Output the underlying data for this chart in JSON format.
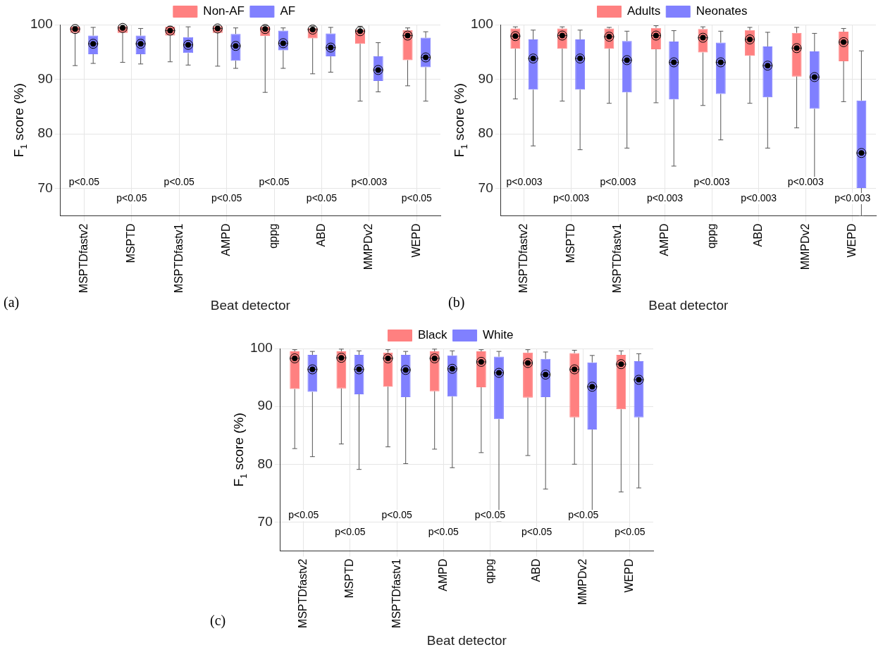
{
  "chart_data": [
    {
      "type": "box",
      "xlabel": "Beat detector",
      "ylabel": "F$_{1}$ score (%)",
      "categories": [
        "MSPTDfastv2",
        "MSPTD",
        "MSPTDfastv1",
        "AMPD",
        "qppg",
        "ABD",
        "MMPDv2",
        "WEPD"
      ],
      "ylim": [
        65,
        100
      ],
      "yticks": [
        70,
        80,
        90,
        100
      ],
      "grid": true,
      "legend": "top",
      "series": [
        {
          "name": "Non-AF",
          "color": "#ff8080",
          "boxes": [
            {
              "low": 92.5,
              "q1": 98.5,
              "median": 99.2,
              "q3": 99.6,
              "high": 99.7,
              "mean": 99.2
            },
            {
              "low": 93.1,
              "q1": 98.5,
              "median": 99.4,
              "q3": 99.7,
              "high": 99.9,
              "mean": 99.4
            },
            {
              "low": 93.2,
              "q1": 98.0,
              "median": 98.9,
              "q3": 99.6,
              "high": 99.7,
              "mean": 98.9
            },
            {
              "low": 92.4,
              "q1": 98.5,
              "median": 99.3,
              "q3": 99.7,
              "high": 99.8,
              "mean": 99.3
            },
            {
              "low": 87.6,
              "q1": 97.9,
              "median": 99.2,
              "q3": 99.6,
              "high": 99.8,
              "mean": 99.2
            },
            {
              "low": 91.0,
              "q1": 97.5,
              "median": 99.1,
              "q3": 99.4,
              "high": 99.7,
              "mean": 99.1
            },
            {
              "low": 86.0,
              "q1": 96.5,
              "median": 98.8,
              "q3": 99.1,
              "high": 99.7,
              "mean": 98.8
            },
            {
              "low": 88.8,
              "q1": 93.5,
              "median": 98.0,
              "q3": 99.0,
              "high": 99.4,
              "mean": 98.0
            }
          ]
        },
        {
          "name": "AF",
          "color": "#8080ff",
          "boxes": [
            {
              "low": 92.9,
              "q1": 94.6,
              "median": 96.5,
              "q3": 98.0,
              "high": 99.5,
              "mean": 96.5
            },
            {
              "low": 92.8,
              "q1": 94.6,
              "median": 96.5,
              "q3": 98.0,
              "high": 99.3,
              "mean": 96.5
            },
            {
              "low": 92.6,
              "q1": 94.8,
              "median": 96.3,
              "q3": 97.7,
              "high": 99.6,
              "mean": 96.3
            },
            {
              "low": 92.0,
              "q1": 93.4,
              "median": 96.1,
              "q3": 98.3,
              "high": 99.4,
              "mean": 96.1
            },
            {
              "low": 92.0,
              "q1": 95.3,
              "median": 96.6,
              "q3": 98.9,
              "high": 99.4,
              "mean": 96.6
            },
            {
              "low": 91.3,
              "q1": 94.2,
              "median": 95.8,
              "q3": 98.4,
              "high": 99.5,
              "mean": 95.8
            },
            {
              "low": 87.7,
              "q1": 89.7,
              "median": 91.7,
              "q3": 94.2,
              "high": 96.7,
              "mean": 91.7
            },
            {
              "low": 86.0,
              "q1": 92.2,
              "median": 94.0,
              "q3": 97.6,
              "high": 98.7,
              "mean": 94.0
            }
          ]
        }
      ],
      "annotations": [
        "(a)",
        "p<0.05",
        "p<0.05",
        "p<0.05",
        "p<0.05",
        "p<0.05",
        "p<0.05",
        "p<0.003",
        "p<0.05"
      ]
    },
    {
      "type": "box",
      "xlabel": "Beat detector",
      "ylabel": "F$_{1}$ score (%)",
      "categories": [
        "MSPTDfastv2",
        "MSPTD",
        "MSPTDfastv1",
        "AMPD",
        "qppg",
        "ABD",
        "MMPDv2",
        "WEPD"
      ],
      "ylim": [
        65,
        100
      ],
      "yticks": [
        70,
        80,
        90,
        100
      ],
      "grid": true,
      "legend": "top",
      "series": [
        {
          "name": "Adults",
          "color": "#ff8080",
          "boxes": [
            {
              "low": 86.4,
              "q1": 95.6,
              "median": 97.9,
              "q3": 99.3,
              "high": 99.6,
              "mean": 97.9
            },
            {
              "low": 86.0,
              "q1": 95.6,
              "median": 98.0,
              "q3": 99.3,
              "high": 99.6,
              "mean": 98.0
            },
            {
              "low": 85.6,
              "q1": 95.6,
              "median": 97.8,
              "q3": 99.3,
              "high": 99.5,
              "mean": 97.8
            },
            {
              "low": 85.7,
              "q1": 95.5,
              "median": 98.0,
              "q3": 99.4,
              "high": 99.8,
              "mean": 98.0
            },
            {
              "low": 85.2,
              "q1": 94.9,
              "median": 97.6,
              "q3": 99.2,
              "high": 99.6,
              "mean": 97.6
            },
            {
              "low": 85.6,
              "q1": 94.3,
              "median": 97.3,
              "q3": 99.0,
              "high": 99.5,
              "mean": 97.3
            },
            {
              "low": 81.1,
              "q1": 90.5,
              "median": 95.7,
              "q3": 98.5,
              "high": 99.5,
              "mean": 95.7
            },
            {
              "low": 85.9,
              "q1": 93.3,
              "median": 96.8,
              "q3": 98.7,
              "high": 99.3,
              "mean": 96.8
            }
          ]
        },
        {
          "name": "Neonates",
          "color": "#8080ff",
          "boxes": [
            {
              "low": 77.8,
              "q1": 88.1,
              "median": 93.8,
              "q3": 97.3,
              "high": 99.0,
              "mean": 93.8
            },
            {
              "low": 77.1,
              "q1": 88.1,
              "median": 93.8,
              "q3": 97.3,
              "high": 99.0,
              "mean": 93.8
            },
            {
              "low": 77.4,
              "q1": 87.6,
              "median": 93.5,
              "q3": 97.0,
              "high": 98.8,
              "mean": 93.5
            },
            {
              "low": 74.1,
              "q1": 86.3,
              "median": 93.1,
              "q3": 96.9,
              "high": 98.9,
              "mean": 93.1
            },
            {
              "low": 78.9,
              "q1": 87.3,
              "median": 93.1,
              "q3": 96.7,
              "high": 98.8,
              "mean": 93.1
            },
            {
              "low": 77.4,
              "q1": 86.7,
              "median": 92.5,
              "q3": 96.0,
              "high": 98.6,
              "mean": 92.5
            },
            {
              "low": 70.2,
              "q1": 84.6,
              "median": 90.4,
              "q3": 95.1,
              "high": 98.4,
              "mean": 90.4
            },
            {
              "low": 65,
              "q1": 70.1,
              "median": 76.5,
              "q3": 86.1,
              "high": 95.2,
              "mean": 76.5
            }
          ]
        }
      ],
      "annotations": [
        "(b)",
        "p<0.003",
        "p<0.003",
        "p<0.003",
        "p<0.003",
        "p<0.003",
        "p<0.003",
        "p<0.003",
        "p<0.003"
      ]
    },
    {
      "type": "box",
      "xlabel": "Beat detector",
      "ylabel": "F$_{1}$ score (%)",
      "categories": [
        "MSPTDfastv2",
        "MSPTD",
        "MSPTDfastv1",
        "AMPD",
        "qppg",
        "ABD",
        "MMPDv2",
        "WEPD"
      ],
      "ylim": [
        65,
        100
      ],
      "yticks": [
        70,
        80,
        90,
        100
      ],
      "grid": true,
      "legend": "top",
      "series": [
        {
          "name": "Black",
          "color": "#ff8080",
          "boxes": [
            {
              "low": 82.7,
              "q1": 93.0,
              "median": 98.3,
              "q3": 99.5,
              "high": 99.8,
              "mean": 98.3
            },
            {
              "low": 83.5,
              "q1": 93.1,
              "median": 98.4,
              "q3": 99.5,
              "high": 99.9,
              "mean": 98.4
            },
            {
              "low": 83.0,
              "q1": 93.4,
              "median": 98.3,
              "q3": 99.3,
              "high": 99.8,
              "mean": 98.3
            },
            {
              "low": 82.6,
              "q1": 92.6,
              "median": 98.3,
              "q3": 99.5,
              "high": 99.9,
              "mean": 98.3
            },
            {
              "low": 82.0,
              "q1": 93.3,
              "median": 97.7,
              "q3": 99.5,
              "high": 99.8,
              "mean": 97.7
            },
            {
              "low": 81.5,
              "q1": 91.5,
              "median": 97.5,
              "q3": 99.3,
              "high": 99.8,
              "mean": 97.5
            },
            {
              "low": 80.0,
              "q1": 88.1,
              "median": 96.4,
              "q3": 99.2,
              "high": 99.7,
              "mean": 96.4
            },
            {
              "low": 75.2,
              "q1": 89.5,
              "median": 97.3,
              "q3": 98.9,
              "high": 99.6,
              "mean": 97.3
            }
          ]
        },
        {
          "name": "White",
          "color": "#8080ff",
          "boxes": [
            {
              "low": 81.3,
              "q1": 92.5,
              "median": 96.4,
              "q3": 98.9,
              "high": 99.5,
              "mean": 96.4
            },
            {
              "low": 79.1,
              "q1": 92.1,
              "median": 96.4,
              "q3": 98.9,
              "high": 99.6,
              "mean": 96.4
            },
            {
              "low": 80.1,
              "q1": 91.6,
              "median": 96.3,
              "q3": 98.9,
              "high": 99.5,
              "mean": 96.3
            },
            {
              "low": 79.4,
              "q1": 91.7,
              "median": 96.5,
              "q3": 98.8,
              "high": 99.6,
              "mean": 96.5
            },
            {
              "low": 70.2,
              "q1": 87.8,
              "median": 95.8,
              "q3": 98.6,
              "high": 99.5,
              "mean": 95.8
            },
            {
              "low": 75.7,
              "q1": 91.6,
              "median": 95.5,
              "q3": 98.2,
              "high": 99.4,
              "mean": 95.5
            },
            {
              "low": 71.9,
              "q1": 86.0,
              "median": 93.4,
              "q3": 97.6,
              "high": 98.8,
              "mean": 93.4
            },
            {
              "low": 75.9,
              "q1": 88.1,
              "median": 94.6,
              "q3": 97.8,
              "high": 99.1,
              "mean": 94.6
            }
          ]
        }
      ],
      "annotations": [
        "(c)",
        "p<0.05",
        "p<0.05",
        "p<0.05",
        "p<0.05",
        "p<0.05",
        "p<0.05",
        "p<0.05",
        "p<0.05"
      ]
    }
  ]
}
